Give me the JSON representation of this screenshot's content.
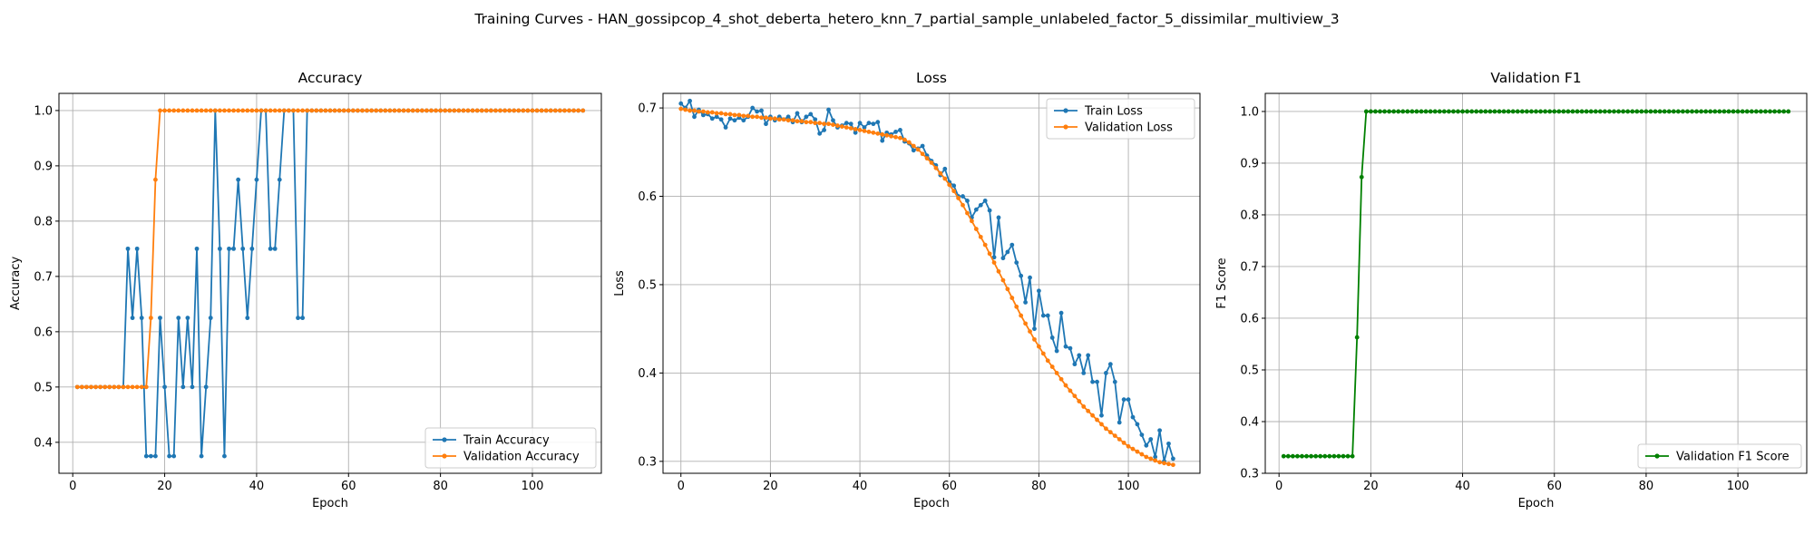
{
  "suptitle": "Training Curves - HAN_gossipcop_4_shot_deberta_hetero_knn_7_partial_sample_unlabeled_factor_5_dissimilar_multiview_3",
  "colors": {
    "train": "#1f77b4",
    "validation": "#ff7f0e",
    "f1": "#008000",
    "grid": "#b0b0b0"
  },
  "chart_data": [
    {
      "type": "line",
      "title": "Accuracy",
      "xlabel": "Epoch",
      "ylabel": "Accuracy",
      "xlim": [
        -3,
        115
      ],
      "ylim": [
        0.344,
        1.031
      ],
      "xticks": [
        0,
        20,
        40,
        60,
        80,
        100
      ],
      "yticks": [
        0.4,
        0.5,
        0.6,
        0.7,
        0.8,
        0.9,
        1.0
      ],
      "ytick_labels": [
        "0.4",
        "0.5",
        "0.6",
        "0.7",
        "0.8",
        "0.9",
        "1.0"
      ],
      "grid": true,
      "legend": "lower right",
      "x_start": 1,
      "series": [
        {
          "name": "Train Accuracy",
          "color_key": "train",
          "values": [
            0.5,
            0.5,
            0.5,
            0.5,
            0.5,
            0.5,
            0.5,
            0.5,
            0.5,
            0.5,
            0.5,
            0.75,
            0.625,
            0.75,
            0.625,
            0.375,
            0.375,
            0.375,
            0.625,
            0.5,
            0.375,
            0.375,
            0.625,
            0.5,
            0.625,
            0.5,
            0.75,
            0.375,
            0.5,
            0.625,
            1.0,
            0.75,
            0.375,
            0.75,
            0.75,
            0.875,
            0.75,
            0.625,
            0.75,
            0.875,
            1.0,
            1.0,
            0.75,
            0.75,
            0.875,
            1.0,
            1.0,
            1.0,
            0.625,
            0.625,
            1.0,
            1.0,
            1.0,
            1.0,
            1.0,
            1.0,
            1.0,
            1.0,
            1.0,
            1.0,
            1.0,
            1.0,
            1.0,
            1.0,
            1.0,
            1.0,
            1.0,
            1.0,
            1.0,
            1.0,
            1.0,
            1.0,
            1.0,
            1.0,
            1.0,
            1.0,
            1.0,
            1.0,
            1.0,
            1.0,
            1.0,
            1.0,
            1.0,
            1.0,
            1.0,
            1.0,
            1.0,
            1.0,
            1.0,
            1.0,
            1.0,
            1.0,
            1.0,
            1.0,
            1.0,
            1.0,
            1.0,
            1.0,
            1.0,
            1.0,
            1.0,
            1.0,
            1.0,
            1.0,
            1.0,
            1.0,
            1.0,
            1.0,
            1.0,
            1.0,
            1.0
          ]
        },
        {
          "name": "Validation Accuracy",
          "color_key": "validation",
          "values": [
            0.5,
            0.5,
            0.5,
            0.5,
            0.5,
            0.5,
            0.5,
            0.5,
            0.5,
            0.5,
            0.5,
            0.5,
            0.5,
            0.5,
            0.5,
            0.5,
            0.625,
            0.875,
            1.0,
            1.0,
            1.0,
            1.0,
            1.0,
            1.0,
            1.0,
            1.0,
            1.0,
            1.0,
            1.0,
            1.0,
            1.0,
            1.0,
            1.0,
            1.0,
            1.0,
            1.0,
            1.0,
            1.0,
            1.0,
            1.0,
            1.0,
            1.0,
            1.0,
            1.0,
            1.0,
            1.0,
            1.0,
            1.0,
            1.0,
            1.0,
            1.0,
            1.0,
            1.0,
            1.0,
            1.0,
            1.0,
            1.0,
            1.0,
            1.0,
            1.0,
            1.0,
            1.0,
            1.0,
            1.0,
            1.0,
            1.0,
            1.0,
            1.0,
            1.0,
            1.0,
            1.0,
            1.0,
            1.0,
            1.0,
            1.0,
            1.0,
            1.0,
            1.0,
            1.0,
            1.0,
            1.0,
            1.0,
            1.0,
            1.0,
            1.0,
            1.0,
            1.0,
            1.0,
            1.0,
            1.0,
            1.0,
            1.0,
            1.0,
            1.0,
            1.0,
            1.0,
            1.0,
            1.0,
            1.0,
            1.0,
            1.0,
            1.0,
            1.0,
            1.0,
            1.0,
            1.0,
            1.0,
            1.0,
            1.0,
            1.0,
            1.0
          ]
        }
      ]
    },
    {
      "type": "line",
      "title": "Loss",
      "xlabel": "Epoch",
      "ylabel": "Loss",
      "xlim": [
        -4,
        116
      ],
      "ylim": [
        0.2865,
        0.7165
      ],
      "xticks": [
        0,
        20,
        40,
        60,
        80,
        100
      ],
      "yticks": [
        0.3,
        0.4,
        0.5,
        0.6,
        0.7
      ],
      "ytick_labels": [
        "0.3",
        "0.4",
        "0.5",
        "0.6",
        "0.7"
      ],
      "grid": true,
      "legend": "upper right",
      "x_start": 0,
      "series": [
        {
          "name": "Train Loss",
          "color_key": "train",
          "values": [
            0.705,
            0.7,
            0.708,
            0.69,
            0.698,
            0.692,
            0.693,
            0.688,
            0.69,
            0.687,
            0.678,
            0.688,
            0.686,
            0.689,
            0.686,
            0.69,
            0.7,
            0.696,
            0.697,
            0.682,
            0.69,
            0.686,
            0.69,
            0.687,
            0.69,
            0.684,
            0.694,
            0.684,
            0.69,
            0.693,
            0.687,
            0.671,
            0.675,
            0.698,
            0.686,
            0.678,
            0.68,
            0.683,
            0.682,
            0.672,
            0.683,
            0.678,
            0.683,
            0.682,
            0.684,
            0.663,
            0.672,
            0.67,
            0.673,
            0.675,
            0.662,
            0.66,
            0.652,
            0.654,
            0.657,
            0.646,
            0.64,
            0.635,
            0.624,
            0.631,
            0.616,
            0.612,
            0.6,
            0.6,
            0.595,
            0.576,
            0.585,
            0.59,
            0.595,
            0.584,
            0.531,
            0.576,
            0.53,
            0.537,
            0.545,
            0.525,
            0.51,
            0.48,
            0.508,
            0.45,
            0.493,
            0.465,
            0.465,
            0.44,
            0.425,
            0.468,
            0.43,
            0.428,
            0.41,
            0.42,
            0.4,
            0.42,
            0.39,
            0.39,
            0.352,
            0.4,
            0.41,
            0.39,
            0.344,
            0.37,
            0.37,
            0.35,
            0.342,
            0.33,
            0.318,
            0.325,
            0.305,
            0.335,
            0.3,
            0.32,
            0.303
          ]
        },
        {
          "name": "Validation Loss",
          "color_key": "validation",
          "values": [
            0.699,
            0.698,
            0.697,
            0.697,
            0.696,
            0.696,
            0.695,
            0.695,
            0.694,
            0.694,
            0.693,
            0.693,
            0.692,
            0.692,
            0.691,
            0.691,
            0.69,
            0.69,
            0.689,
            0.689,
            0.688,
            0.688,
            0.687,
            0.687,
            0.686,
            0.686,
            0.685,
            0.685,
            0.684,
            0.684,
            0.683,
            0.683,
            0.682,
            0.682,
            0.681,
            0.68,
            0.679,
            0.678,
            0.677,
            0.676,
            0.675,
            0.674,
            0.673,
            0.672,
            0.671,
            0.67,
            0.669,
            0.668,
            0.667,
            0.666,
            0.664,
            0.661,
            0.657,
            0.653,
            0.648,
            0.643,
            0.638,
            0.632,
            0.626,
            0.62,
            0.613,
            0.606,
            0.598,
            0.59,
            0.581,
            0.572,
            0.563,
            0.554,
            0.545,
            0.535,
            0.525,
            0.515,
            0.505,
            0.495,
            0.485,
            0.475,
            0.465,
            0.456,
            0.447,
            0.438,
            0.43,
            0.422,
            0.414,
            0.407,
            0.4,
            0.393,
            0.386,
            0.38,
            0.374,
            0.368,
            0.362,
            0.357,
            0.352,
            0.347,
            0.342,
            0.337,
            0.333,
            0.329,
            0.325,
            0.321,
            0.317,
            0.314,
            0.311,
            0.308,
            0.305,
            0.303,
            0.301,
            0.299,
            0.298,
            0.297,
            0.296
          ]
        }
      ]
    },
    {
      "type": "line",
      "title": "Validation F1",
      "xlabel": "Epoch",
      "ylabel": "F1 Score",
      "xlim": [
        -3,
        115
      ],
      "ylim": [
        0.3,
        1.035
      ],
      "xticks": [
        0,
        20,
        40,
        60,
        80,
        100
      ],
      "yticks": [
        0.3,
        0.4,
        0.5,
        0.6,
        0.7,
        0.8,
        0.9,
        1.0
      ],
      "ytick_labels": [
        "0.3",
        "0.4",
        "0.5",
        "0.6",
        "0.7",
        "0.8",
        "0.9",
        "1.0"
      ],
      "grid": true,
      "legend": "lower right",
      "x_start": 1,
      "series": [
        {
          "name": "Validation F1 Score",
          "color_key": "f1",
          "values": [
            0.333,
            0.333,
            0.333,
            0.333,
            0.333,
            0.333,
            0.333,
            0.333,
            0.333,
            0.333,
            0.333,
            0.333,
            0.333,
            0.333,
            0.333,
            0.333,
            0.563,
            0.873,
            1.0,
            1.0,
            1.0,
            1.0,
            1.0,
            1.0,
            1.0,
            1.0,
            1.0,
            1.0,
            1.0,
            1.0,
            1.0,
            1.0,
            1.0,
            1.0,
            1.0,
            1.0,
            1.0,
            1.0,
            1.0,
            1.0,
            1.0,
            1.0,
            1.0,
            1.0,
            1.0,
            1.0,
            1.0,
            1.0,
            1.0,
            1.0,
            1.0,
            1.0,
            1.0,
            1.0,
            1.0,
            1.0,
            1.0,
            1.0,
            1.0,
            1.0,
            1.0,
            1.0,
            1.0,
            1.0,
            1.0,
            1.0,
            1.0,
            1.0,
            1.0,
            1.0,
            1.0,
            1.0,
            1.0,
            1.0,
            1.0,
            1.0,
            1.0,
            1.0,
            1.0,
            1.0,
            1.0,
            1.0,
            1.0,
            1.0,
            1.0,
            1.0,
            1.0,
            1.0,
            1.0,
            1.0,
            1.0,
            1.0,
            1.0,
            1.0,
            1.0,
            1.0,
            1.0,
            1.0,
            1.0,
            1.0,
            1.0,
            1.0,
            1.0,
            1.0,
            1.0,
            1.0,
            1.0,
            1.0,
            1.0,
            1.0,
            1.0
          ]
        }
      ]
    }
  ]
}
